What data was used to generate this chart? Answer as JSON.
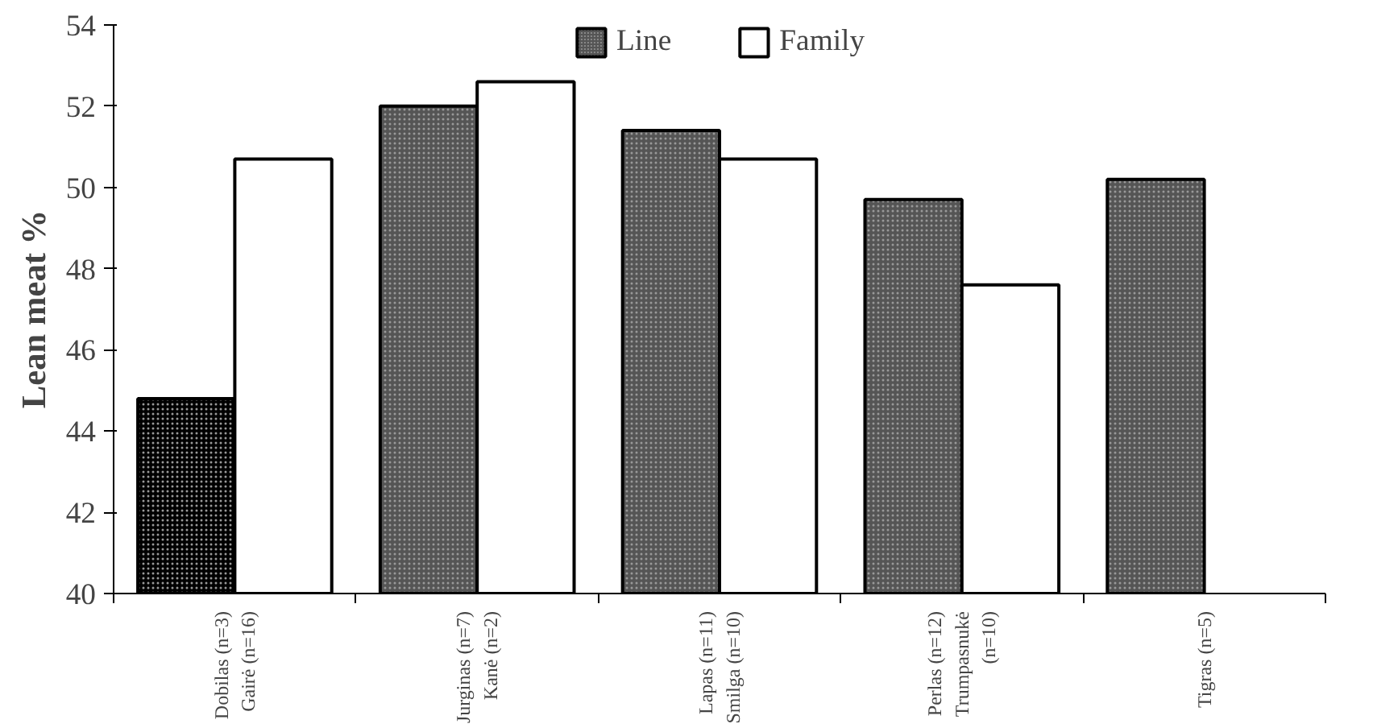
{
  "chart_data": {
    "type": "bar",
    "ylabel": "Lean meat %",
    "categories": [
      "Dobilas (n=3)\nGairė (n=16)",
      "Jurginas (n=7)\nKanė (n=2)",
      "Lapas (n=11)\nSmilga (n=10)",
      "Perlas (n=12)\nTrumpasnukė\n(n=10)",
      "Tigras (n=5)"
    ],
    "series": [
      {
        "name": "Line",
        "color": "#555555",
        "colors": [
          "#000000",
          "#555555",
          "#555555",
          "#555555",
          "#555555"
        ],
        "values": [
          44.8,
          52.0,
          51.4,
          49.7,
          50.2
        ]
      },
      {
        "name": "Family",
        "color": "#ffffff",
        "values": [
          50.7,
          52.6,
          50.7,
          47.6,
          null
        ]
      }
    ],
    "ylim": [
      40,
      54
    ],
    "yticks": [
      40,
      42,
      44,
      46,
      48,
      50,
      52,
      54
    ],
    "grid": false,
    "legend": "top"
  }
}
